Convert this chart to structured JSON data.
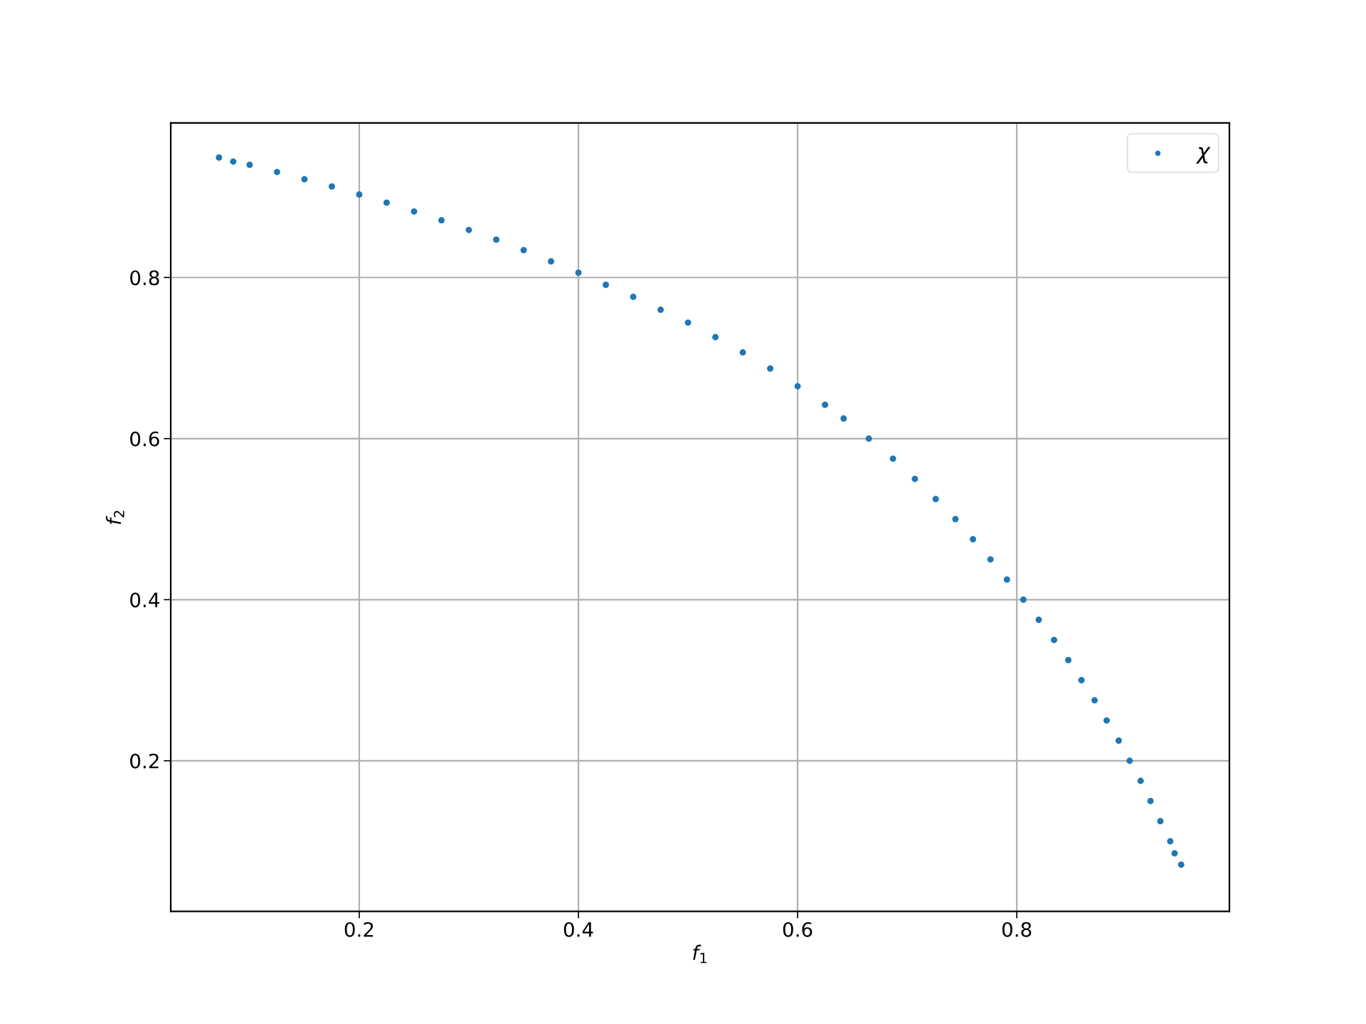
{
  "chart_data": {
    "type": "scatter",
    "xlabel": "f$_{1}$",
    "ylabel": "f$_{2}$",
    "series": [
      {
        "name": "χ",
        "color": "#1f77b4",
        "marker": "circle",
        "x": [
          0.072,
          0.085,
          0.1,
          0.125,
          0.15,
          0.175,
          0.2,
          0.225,
          0.25,
          0.275,
          0.3,
          0.325,
          0.35,
          0.375,
          0.4,
          0.425,
          0.45,
          0.475,
          0.5,
          0.525,
          0.55,
          0.575,
          0.6,
          0.625,
          0.642,
          0.665,
          0.687,
          0.707,
          0.726,
          0.744,
          0.76,
          0.776,
          0.791,
          0.806,
          0.82,
          0.834,
          0.847,
          0.859,
          0.871,
          0.882,
          0.893,
          0.903,
          0.913,
          0.922,
          0.931,
          0.94,
          0.944,
          0.95
        ],
        "values": [
          0.949,
          0.944,
          0.94,
          0.931,
          0.922,
          0.913,
          0.903,
          0.893,
          0.882,
          0.871,
          0.859,
          0.847,
          0.834,
          0.82,
          0.806,
          0.791,
          0.776,
          0.76,
          0.744,
          0.726,
          0.707,
          0.687,
          0.665,
          0.642,
          0.625,
          0.6,
          0.575,
          0.55,
          0.525,
          0.5,
          0.475,
          0.45,
          0.425,
          0.4,
          0.375,
          0.35,
          0.325,
          0.3,
          0.275,
          0.25,
          0.225,
          0.2,
          0.175,
          0.15,
          0.125,
          0.1,
          0.085,
          0.071
        ]
      }
    ],
    "xlim": [
      0.028,
      0.994
    ],
    "ylim": [
      0.013,
      0.992
    ],
    "xticks": [
      0.2,
      0.4,
      0.6,
      0.8
    ],
    "yticks": [
      0.2,
      0.4,
      0.6,
      0.8
    ],
    "grid": true,
    "legend": "upper right"
  }
}
